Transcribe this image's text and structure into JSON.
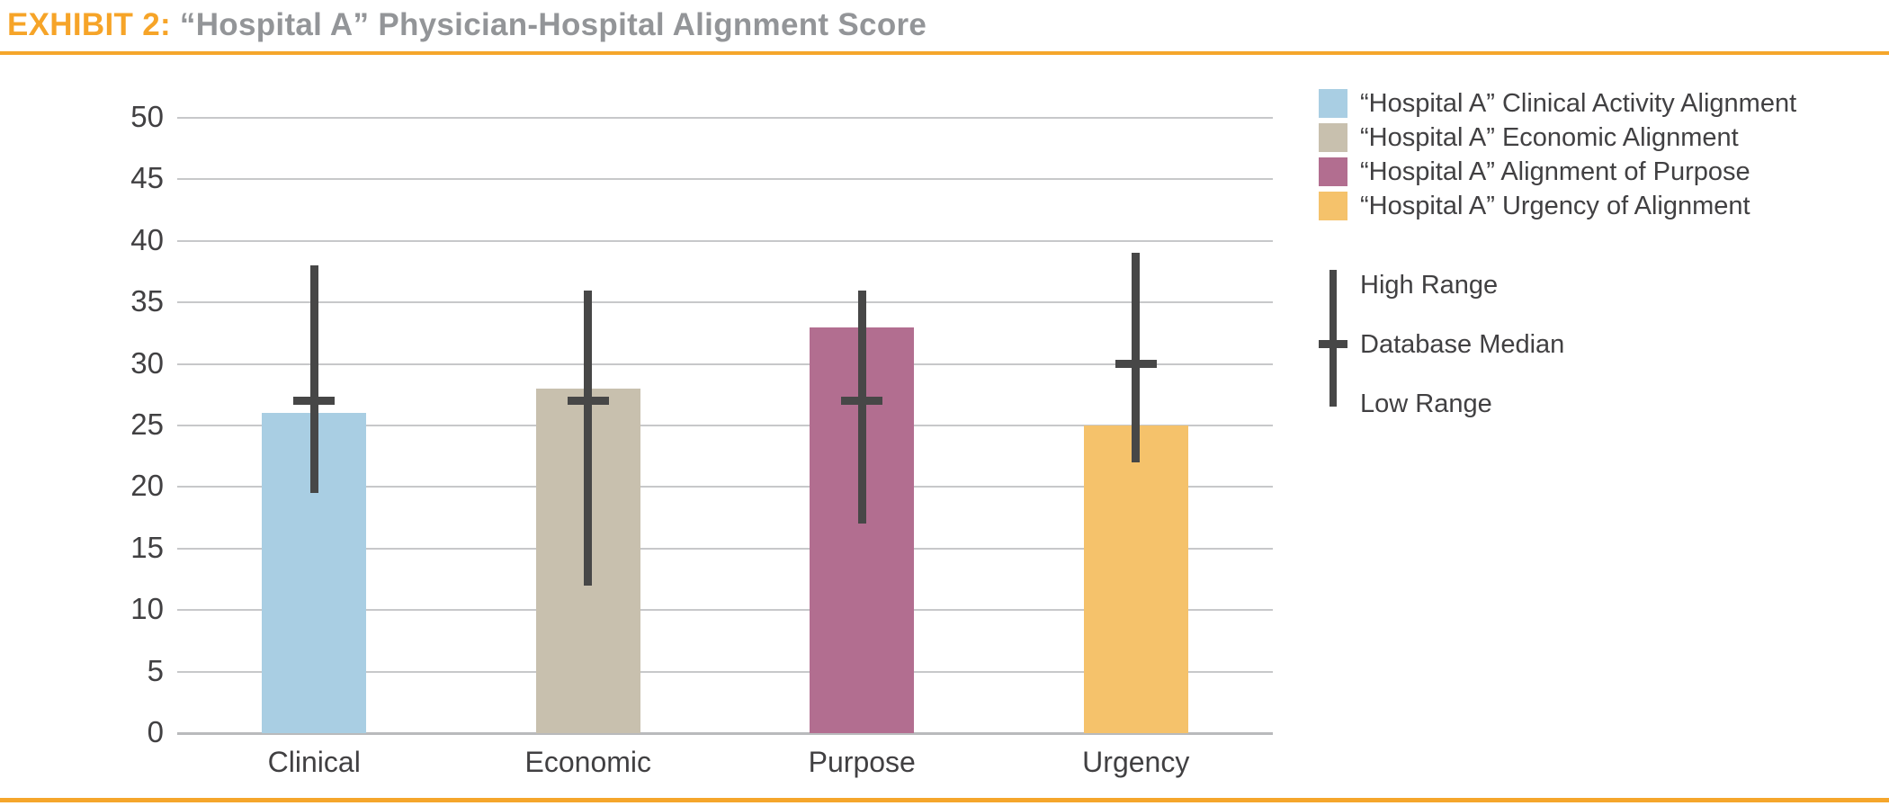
{
  "header": {
    "exhibit_label": "EXHIBIT 2:",
    "title": "“Hospital A” Physician-Hospital Alignment Score"
  },
  "colors": {
    "accent_rule": "#F5A62B",
    "exhibit_label_color": "#F6A428",
    "title_color": "#939598",
    "axis_text_color": "#414042",
    "gridline_color": "#C7C8CA",
    "zero_line_color": "#B9BABC",
    "error_bar_color": "#474747",
    "bar_clinical": "#A9CEE3",
    "bar_economic": "#C8C0AE",
    "bar_purpose": "#B26E90",
    "bar_urgency": "#F5C26B"
  },
  "chart_data": {
    "type": "bar",
    "title": "EXHIBIT 2: “Hospital A” Physician-Hospital Alignment Score",
    "categories": [
      "Clinical",
      "Economic",
      "Purpose",
      "Urgency"
    ],
    "values": [
      26,
      28,
      33,
      25
    ],
    "bar_colors": [
      "#A9CEE3",
      "#C8C0AE",
      "#B26E90",
      "#F5C26B"
    ],
    "error_bars": {
      "high": [
        38,
        36,
        36,
        39
      ],
      "median": [
        27,
        27,
        27,
        30
      ],
      "low": [
        19.5,
        12,
        17,
        22
      ]
    },
    "xlabel": "",
    "ylabel": "",
    "ylim": [
      0,
      50
    ],
    "ytick_step": 5,
    "grid": true,
    "legend_position": "right"
  },
  "legend": {
    "items": [
      {
        "label": "“Hospital A” Clinical Activity Alignment",
        "color": "#A9CEE3"
      },
      {
        "label": "“Hospital A” Economic Alignment",
        "color": "#C8C0AE"
      },
      {
        "label": "“Hospital A” Alignment of Purpose",
        "color": "#B26E90"
      },
      {
        "label": "“Hospital A” Urgency of Alignment",
        "color": "#F5C26B"
      }
    ],
    "range_items": [
      "High Range",
      "Database Median",
      "Low Range"
    ]
  }
}
